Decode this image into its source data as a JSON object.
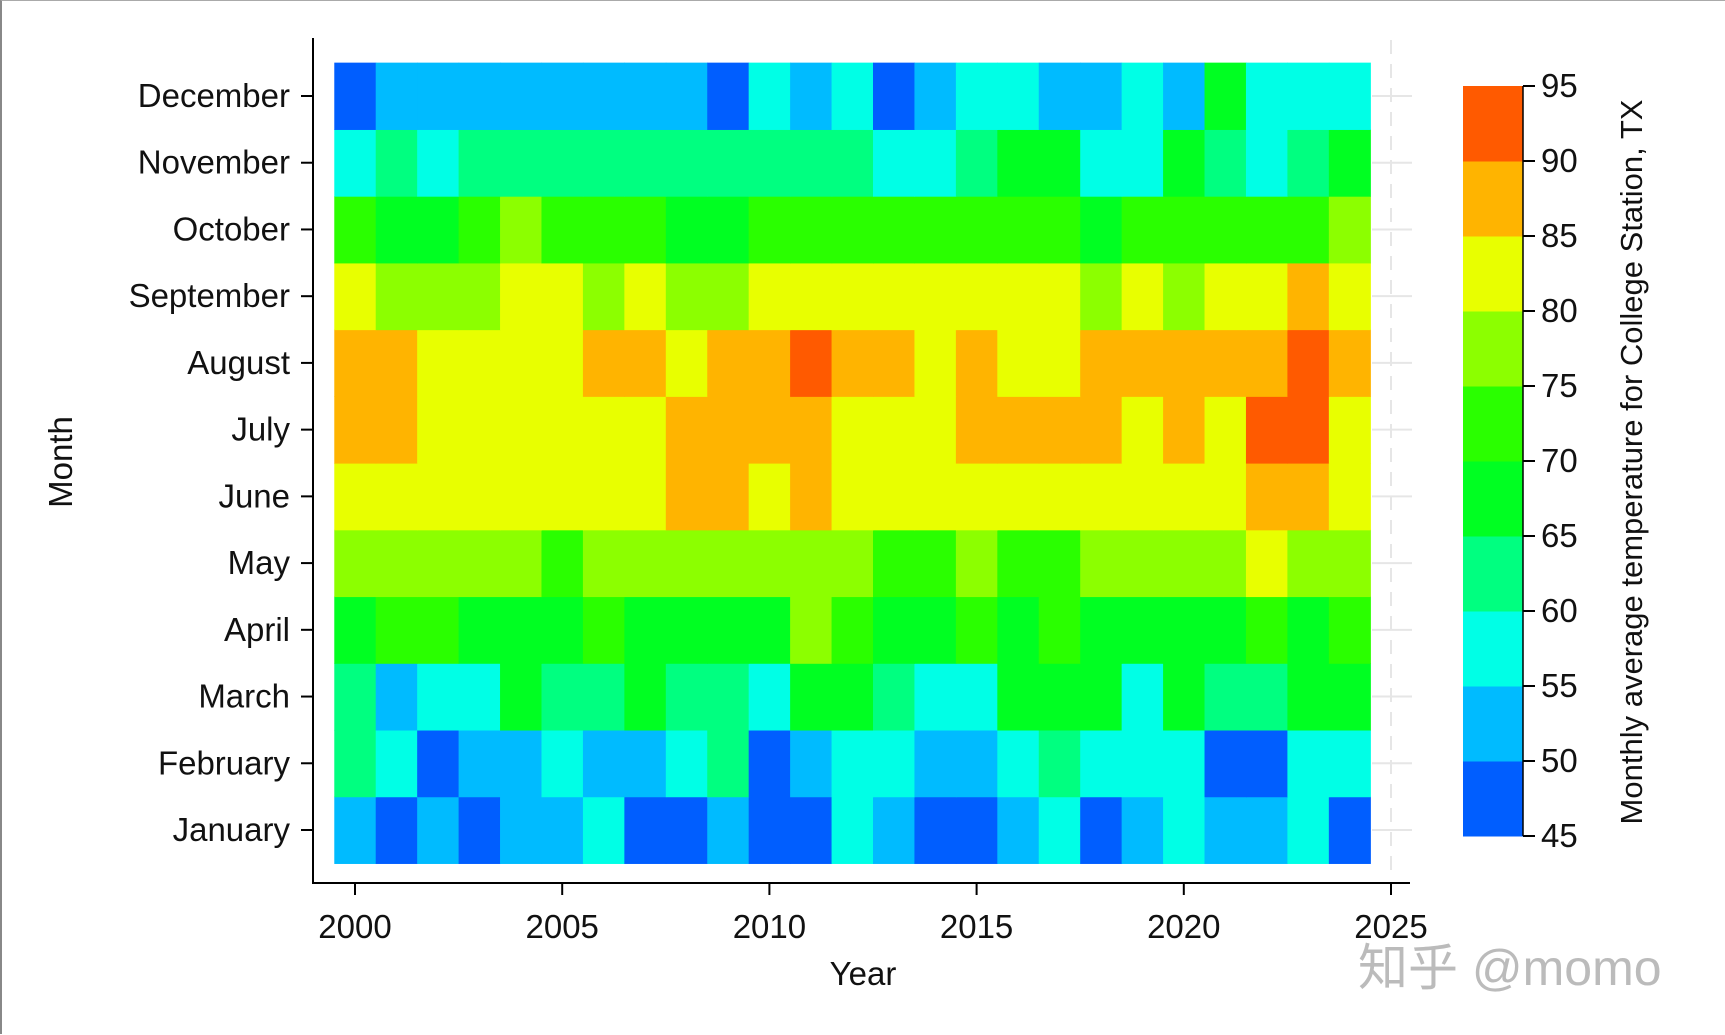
{
  "chart_data": {
    "type": "heatmap",
    "title": "",
    "xlabel": "Year",
    "ylabel": "Month",
    "colorbar_label": "Monthly average temperature for College Station, TX",
    "x": [
      2000,
      2001,
      2002,
      2003,
      2004,
      2005,
      2006,
      2007,
      2008,
      2009,
      2010,
      2011,
      2012,
      2013,
      2014,
      2015,
      2016,
      2017,
      2018,
      2019,
      2020,
      2021,
      2022,
      2023,
      2024
    ],
    "xlim": [
      1999.5,
      2025.5
    ],
    "xticks": [
      "2000",
      "2005",
      "2010",
      "2015",
      "2020",
      "2025"
    ],
    "xtick_values": [
      2000,
      2005,
      2010,
      2015,
      2020,
      2025
    ],
    "months": [
      "January",
      "February",
      "March",
      "April",
      "May",
      "June",
      "July",
      "August",
      "September",
      "October",
      "November",
      "December"
    ],
    "colorbar_ticks": [
      "45",
      "50",
      "55",
      "60",
      "65",
      "70",
      "75",
      "80",
      "85",
      "90",
      "95"
    ],
    "colorbar_range": [
      45,
      95
    ],
    "bins": [
      {
        "range": [
          45,
          50
        ],
        "color": "#005eff"
      },
      {
        "range": [
          50,
          55
        ],
        "color": "#00bbff"
      },
      {
        "range": [
          55,
          60
        ],
        "color": "#00ffe6"
      },
      {
        "range": [
          60,
          65
        ],
        "color": "#00ff80"
      },
      {
        "range": [
          65,
          70
        ],
        "color": "#00ff22"
      },
      {
        "range": [
          70,
          75
        ],
        "color": "#2aff00"
      },
      {
        "range": [
          75,
          80
        ],
        "color": "#8cff00"
      },
      {
        "range": [
          80,
          85
        ],
        "color": "#e8ff00"
      },
      {
        "range": [
          85,
          90
        ],
        "color": "#ffb400"
      },
      {
        "range": [
          90,
          95
        ],
        "color": "#ff5a00"
      }
    ],
    "values_note": "values are bin midpoints (°F), rows January..December, columns 2000..2024",
    "values": [
      [
        52.5,
        47.5,
        52.5,
        47.5,
        52.5,
        52.5,
        57.5,
        47.5,
        47.5,
        52.5,
        47.5,
        47.5,
        57.5,
        52.5,
        47.5,
        47.5,
        52.5,
        57.5,
        47.5,
        52.5,
        57.5,
        52.5,
        52.5,
        57.5,
        47.5
      ],
      [
        62.5,
        57.5,
        47.5,
        52.5,
        52.5,
        57.5,
        52.5,
        52.5,
        57.5,
        62.5,
        47.5,
        52.5,
        57.5,
        57.5,
        52.5,
        52.5,
        57.5,
        62.5,
        57.5,
        57.5,
        57.5,
        47.5,
        47.5,
        57.5,
        57.5
      ],
      [
        62.5,
        52.5,
        57.5,
        57.5,
        67.5,
        62.5,
        62.5,
        67.5,
        62.5,
        62.5,
        57.5,
        67.5,
        67.5,
        62.5,
        57.5,
        57.5,
        67.5,
        67.5,
        67.5,
        57.5,
        67.5,
        62.5,
        62.5,
        67.5,
        67.5
      ],
      [
        67.5,
        72.5,
        72.5,
        67.5,
        67.5,
        67.5,
        72.5,
        67.5,
        67.5,
        67.5,
        67.5,
        77.5,
        72.5,
        67.5,
        67.5,
        72.5,
        67.5,
        72.5,
        67.5,
        67.5,
        67.5,
        67.5,
        72.5,
        67.5,
        72.5
      ],
      [
        77.5,
        77.5,
        77.5,
        77.5,
        77.5,
        72.5,
        77.5,
        77.5,
        77.5,
        77.5,
        77.5,
        77.5,
        77.5,
        72.5,
        72.5,
        77.5,
        72.5,
        72.5,
        77.5,
        77.5,
        77.5,
        77.5,
        82.5,
        77.5,
        77.5
      ],
      [
        82.5,
        82.5,
        82.5,
        82.5,
        82.5,
        82.5,
        82.5,
        82.5,
        87.5,
        87.5,
        82.5,
        87.5,
        82.5,
        82.5,
        82.5,
        82.5,
        82.5,
        82.5,
        82.5,
        82.5,
        82.5,
        82.5,
        87.5,
        87.5,
        82.5
      ],
      [
        87.5,
        87.5,
        82.5,
        82.5,
        82.5,
        82.5,
        82.5,
        82.5,
        87.5,
        87.5,
        87.5,
        87.5,
        82.5,
        82.5,
        82.5,
        87.5,
        87.5,
        87.5,
        87.5,
        82.5,
        87.5,
        82.5,
        92.5,
        92.5,
        82.5
      ],
      [
        87.5,
        87.5,
        82.5,
        82.5,
        82.5,
        82.5,
        87.5,
        87.5,
        82.5,
        87.5,
        87.5,
        92.5,
        87.5,
        87.5,
        82.5,
        87.5,
        82.5,
        82.5,
        87.5,
        87.5,
        87.5,
        87.5,
        87.5,
        92.5,
        87.5
      ],
      [
        82.5,
        77.5,
        77.5,
        77.5,
        82.5,
        82.5,
        77.5,
        82.5,
        77.5,
        77.5,
        82.5,
        82.5,
        82.5,
        82.5,
        82.5,
        82.5,
        82.5,
        82.5,
        77.5,
        82.5,
        77.5,
        82.5,
        82.5,
        87.5,
        82.5
      ],
      [
        72.5,
        67.5,
        67.5,
        72.5,
        77.5,
        72.5,
        72.5,
        72.5,
        67.5,
        67.5,
        72.5,
        72.5,
        72.5,
        72.5,
        72.5,
        72.5,
        72.5,
        72.5,
        67.5,
        72.5,
        72.5,
        72.5,
        72.5,
        72.5,
        77.5
      ],
      [
        57.5,
        62.5,
        57.5,
        62.5,
        62.5,
        62.5,
        62.5,
        62.5,
        62.5,
        62.5,
        62.5,
        62.5,
        62.5,
        57.5,
        57.5,
        62.5,
        67.5,
        67.5,
        57.5,
        57.5,
        67.5,
        62.5,
        57.5,
        62.5,
        67.5
      ],
      [
        47.5,
        52.5,
        52.5,
        52.5,
        52.5,
        52.5,
        52.5,
        52.5,
        52.5,
        47.5,
        57.5,
        52.5,
        57.5,
        47.5,
        52.5,
        57.5,
        57.5,
        52.5,
        52.5,
        57.5,
        52.5,
        67.5,
        57.5,
        57.5,
        57.5
      ]
    ],
    "grid": false,
    "legend": "colorbar-right"
  },
  "watermark": "知乎 @momo"
}
